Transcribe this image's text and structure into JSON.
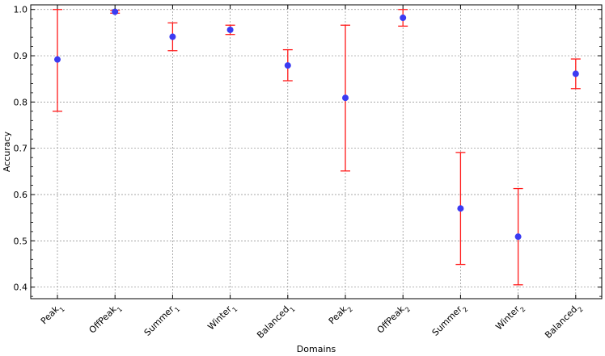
{
  "chart_data": {
    "type": "scatter",
    "variant": "errorbar",
    "title": "",
    "xlabel": "Domains",
    "ylabel": "Accuracy",
    "ylim": [
      0.375,
      1.01
    ],
    "yticks": [
      "0.4",
      "0.5",
      "0.6",
      "0.7",
      "0.8",
      "0.9",
      "1.0"
    ],
    "grid": true,
    "categories": [
      {
        "base": "Peak",
        "sub": "1"
      },
      {
        "base": "OffPeak",
        "sub": "1"
      },
      {
        "base": "Summer",
        "sub": "1"
      },
      {
        "base": "Winter",
        "sub": "1"
      },
      {
        "base": "Balanced",
        "sub": "1"
      },
      {
        "base": "Peak",
        "sub": "2"
      },
      {
        "base": "OffPeak",
        "sub": "2"
      },
      {
        "base": "Summer",
        "sub": "2"
      },
      {
        "base": "Winter",
        "sub": "2"
      },
      {
        "base": "Balanced",
        "sub": "2"
      }
    ],
    "values": [
      0.892,
      0.995,
      0.941,
      0.956,
      0.879,
      0.809,
      0.982,
      0.57,
      0.509,
      0.861
    ],
    "lower": [
      0.78,
      0.992,
      0.911,
      0.946,
      0.846,
      0.651,
      0.964,
      0.449,
      0.405,
      0.829
    ],
    "upper": [
      1.0,
      0.998,
      0.971,
      0.966,
      0.913,
      0.966,
      1.0,
      0.691,
      0.613,
      0.893
    ],
    "point_color": "#3b3bf2",
    "errorbar_color": "#ff1a1a"
  }
}
